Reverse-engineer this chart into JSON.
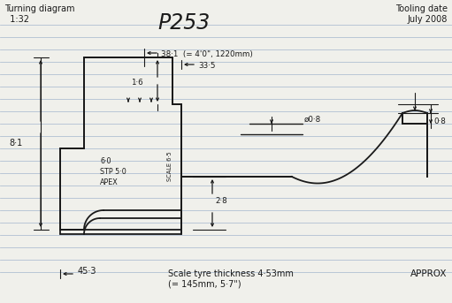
{
  "bg_color": "#f0f0eb",
  "line_color": "#1a1a1a",
  "ruled_line_color": "#aabbd0",
  "title": "P253",
  "subtitle_left": "Turning diagram\n  1:32",
  "subtitle_right": "Tooling date\nJuly 2008",
  "dim_38": "38·1  (= 4'0\", 1220mm)",
  "dim_33": "33·5",
  "dim_16": "1·6",
  "dim_81": "8·1",
  "dim_60": "6·0",
  "dim_stp": "STP 5·0",
  "dim_apex": "APEX",
  "dim_scale": "SCALE 6·5",
  "dim_28": "2·8",
  "dim_08a": "ø0·8",
  "dim_center": "⊕",
  "dim_08b": "0·8",
  "bottom_45": "45·3",
  "bottom_scale": "Scale tyre thickness 4·53mm",
  "bottom_scale2": "(= 145mm, 5·7\")",
  "bottom_approx": "APPROX"
}
